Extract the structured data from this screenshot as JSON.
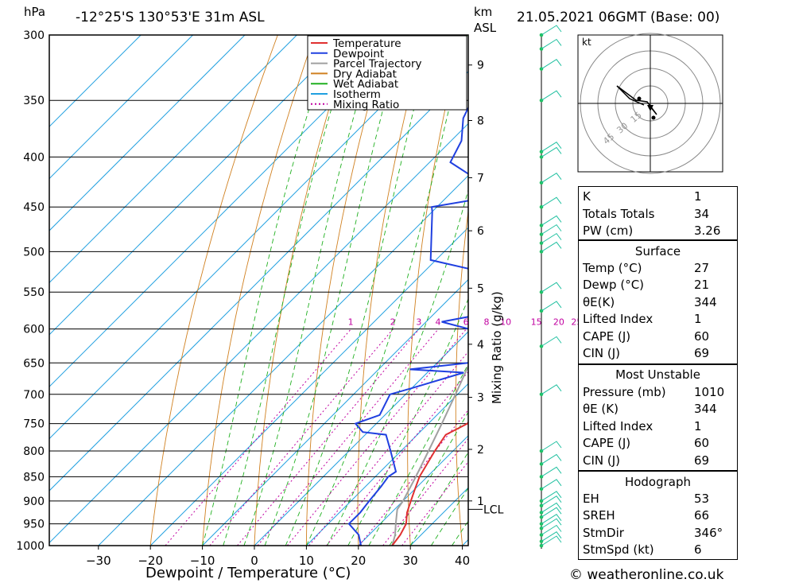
{
  "header": {
    "location": "-12°25'S 130°53'E 31m ASL",
    "datetime": "21.05.2021 06GMT (Base: 00)",
    "pressure_unit": "hPa",
    "height_unit": "km",
    "height_unit2": "ASL"
  },
  "footer": {
    "credit": "© weatheronline.co.uk"
  },
  "colors": {
    "temperature": "#e03030",
    "dewpoint": "#2040e0",
    "parcel": "#a0a0a0",
    "dry_adiabat": "#d08020",
    "wet_adiabat": "#20b020",
    "isotherm": "#20a0e0",
    "mixing_ratio": "#c000a0",
    "wind": "#20c0a0"
  },
  "chart_data": {
    "type": "line",
    "title": "-12°25'S 130°53'E 31m ASL",
    "xlabel": "Dewpoint / Temperature (°C)",
    "ylabel": "hPa",
    "right_axis_label": "Mixing Ratio (g/kg)",
    "x_ticks": [
      -30,
      -20,
      -10,
      0,
      10,
      20,
      30,
      40
    ],
    "p_ticks": [
      300,
      350,
      400,
      450,
      500,
      550,
      600,
      650,
      700,
      750,
      800,
      850,
      900,
      950,
      1000
    ],
    "km_ticks": [
      {
        "label": "1",
        "p": 900
      },
      {
        "label": "2",
        "p": 797
      },
      {
        "label": "3",
        "p": 705
      },
      {
        "label": "4",
        "p": 622
      },
      {
        "label": "5",
        "p": 545
      },
      {
        "label": "6",
        "p": 476
      },
      {
        "label": "7",
        "p": 420
      },
      {
        "label": "8",
        "p": 367
      },
      {
        "label": "9",
        "p": 322
      }
    ],
    "lcl": {
      "label": "LCL",
      "p": 918
    },
    "mixing_ratio_labels": [
      "1",
      "2",
      "3",
      "4",
      "6",
      "8",
      "10",
      "15",
      "20",
      "25"
    ],
    "legend": [
      "Temperature",
      "Dewpoint",
      "Parcel Trajectory",
      "Dry Adiabat",
      "Wet Adiabat",
      "Isotherm",
      "Mixing Ratio"
    ],
    "series": [
      {
        "name": "Temperature",
        "points": [
          [
            1000,
            26.5
          ],
          [
            975,
            26
          ],
          [
            950,
            25
          ],
          [
            925,
            23
          ],
          [
            900,
            21.5
          ],
          [
            875,
            20
          ],
          [
            850,
            18.5
          ],
          [
            800,
            16.5
          ],
          [
            770,
            15.5
          ],
          [
            750,
            17.5
          ],
          [
            700,
            16
          ],
          [
            680,
            15
          ],
          [
            650,
            13
          ],
          [
            600,
            10
          ],
          [
            575,
            8.5
          ],
          [
            550,
            7.5
          ],
          [
            500,
            5
          ],
          [
            450,
            1
          ],
          [
            435,
            0
          ],
          [
            400,
            -1.5
          ],
          [
            350,
            -8
          ],
          [
            330,
            -12
          ]
        ]
      },
      {
        "name": "Dewpoint",
        "points": [
          [
            1000,
            20.5
          ],
          [
            975,
            18
          ],
          [
            950,
            14
          ],
          [
            925,
            14
          ],
          [
            900,
            13.5
          ],
          [
            870,
            13
          ],
          [
            850,
            12.5
          ],
          [
            840,
            13
          ],
          [
            800,
            8
          ],
          [
            770,
            4
          ],
          [
            765,
            -1
          ],
          [
            750,
            -4
          ],
          [
            735,
            -1
          ],
          [
            700,
            -3
          ],
          [
            690,
            0
          ],
          [
            665,
            7
          ],
          [
            660,
            -4
          ],
          [
            650,
            6
          ],
          [
            640,
            8
          ],
          [
            620,
            3
          ],
          [
            610,
            6
          ],
          [
            590,
            -7
          ],
          [
            575,
            2
          ],
          [
            550,
            -2
          ],
          [
            540,
            4
          ],
          [
            510,
            -21
          ],
          [
            455,
            -30
          ],
          [
            450,
            -31
          ],
          [
            440,
            -22
          ],
          [
            425,
            -26
          ],
          [
            405,
            -36
          ],
          [
            385,
            -38
          ],
          [
            365,
            -42
          ],
          [
            340,
            -45
          ],
          [
            330,
            -46
          ],
          [
            300,
            -54
          ]
        ]
      },
      {
        "name": "Parcel Trajectory",
        "points": [
          [
            1000,
            26.5
          ],
          [
            975,
            25
          ],
          [
            950,
            23
          ],
          [
            918,
            20.5
          ],
          [
            900,
            20
          ],
          [
            850,
            17.8
          ],
          [
            800,
            15.3
          ],
          [
            750,
            12.6
          ],
          [
            700,
            9.6
          ],
          [
            650,
            6.3
          ],
          [
            600,
            2.6
          ],
          [
            550,
            -1.5
          ],
          [
            500,
            -6
          ],
          [
            450,
            -11.5
          ],
          [
            400,
            -18
          ],
          [
            350,
            -26
          ],
          [
            300,
            -35.5
          ]
        ]
      }
    ]
  },
  "hodograph": {
    "unit": "kt",
    "ring_labels": [
      "15",
      "30",
      "45"
    ]
  },
  "indices": {
    "k": {
      "label": "K",
      "value": "1"
    },
    "tt": {
      "label": "Totals Totals",
      "value": "34"
    },
    "pw": {
      "label": "PW (cm)",
      "value": "3.26"
    }
  },
  "surface": {
    "title": "Surface",
    "temp": {
      "label": "Temp (°C)",
      "value": "27"
    },
    "dewp": {
      "label": "Dewp (°C)",
      "value": "21"
    },
    "theta": {
      "label": "θE(K)",
      "value": "344"
    },
    "li": {
      "label": "Lifted Index",
      "value": "1"
    },
    "cape": {
      "label": "CAPE (J)",
      "value": "60"
    },
    "cin": {
      "label": "CIN (J)",
      "value": "69"
    }
  },
  "most_unstable": {
    "title": "Most Unstable",
    "pressure": {
      "label": "Pressure (mb)",
      "value": "1010"
    },
    "theta": {
      "label": "θE (K)",
      "value": "344"
    },
    "li": {
      "label": "Lifted Index",
      "value": "1"
    },
    "cape": {
      "label": "CAPE (J)",
      "value": "60"
    },
    "cin": {
      "label": "CIN (J)",
      "value": "69"
    }
  },
  "hodograph_stats": {
    "title": "Hodograph",
    "eh": {
      "label": "EH",
      "value": "53"
    },
    "sreh": {
      "label": "SREH",
      "value": "66"
    },
    "stmdir": {
      "label": "StmDir",
      "value": "346°"
    },
    "stmspd": {
      "label": "StmSpd (kt)",
      "value": "6"
    }
  }
}
